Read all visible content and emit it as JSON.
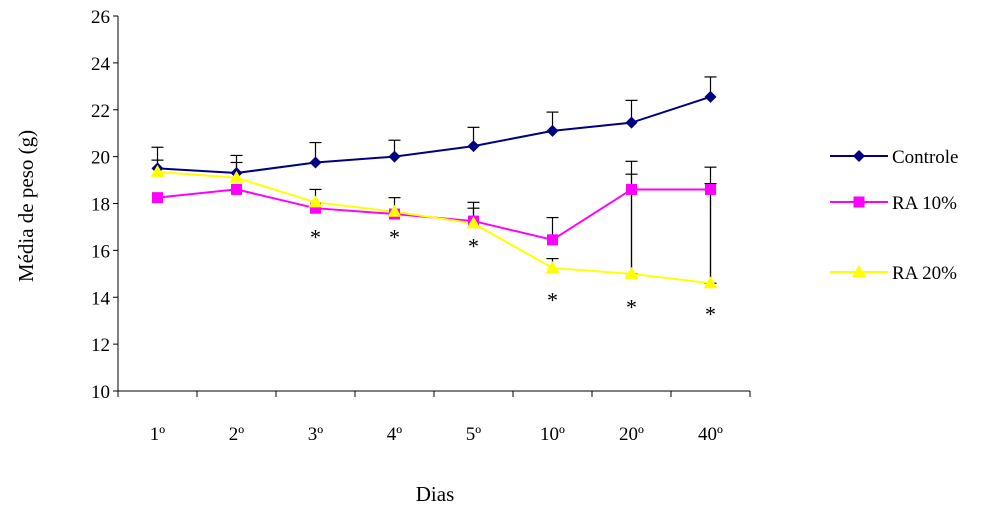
{
  "chart_data": {
    "type": "line",
    "title": "",
    "xlabel": "Dias",
    "ylabel": "Média de peso (g)",
    "categories": [
      "1º",
      "2º",
      "3º",
      "4º",
      "5º",
      "10º",
      "20º",
      "40º"
    ],
    "ylim": [
      10,
      26
    ],
    "yticks": [
      10,
      12,
      14,
      16,
      18,
      20,
      22,
      24,
      26
    ],
    "grid": false,
    "legend_position": "right",
    "series": [
      {
        "name": "Controle",
        "color": "#000080",
        "marker": "diamond",
        "values": [
          19.5,
          19.3,
          19.75,
          20.0,
          20.45,
          21.1,
          21.45,
          22.55
        ],
        "error_upper": [
          20.4,
          20.05,
          20.6,
          20.7,
          21.25,
          21.9,
          22.4,
          23.4
        ]
      },
      {
        "name": "RA 10%",
        "color": "#ff00ff",
        "marker": "square",
        "values": [
          18.25,
          18.6,
          17.8,
          17.55,
          17.25,
          16.45,
          18.6,
          18.6
        ],
        "error_upper": [
          18.25,
          18.6,
          17.8,
          17.55,
          18.05,
          17.4,
          19.8,
          19.55
        ],
        "error_lower": [
          18.25,
          18.6,
          17.8,
          17.55,
          17.25,
          16.45,
          15.0,
          14.6
        ]
      },
      {
        "name": "RA 20%",
        "color": "#ffff00",
        "marker": "triangle",
        "values": [
          19.35,
          19.1,
          18.05,
          17.65,
          17.15,
          15.25,
          15.0,
          14.6
        ],
        "error_upper": [
          19.85,
          19.75,
          18.6,
          18.25,
          17.8,
          15.65,
          19.25,
          18.85
        ]
      }
    ],
    "annotations": [
      {
        "category": "3º",
        "text": "*",
        "y": 16.6
      },
      {
        "category": "4º",
        "text": "*",
        "y": 16.6
      },
      {
        "category": "5º",
        "text": "*",
        "y": 16.2
      },
      {
        "category": "10º",
        "text": "*",
        "y": 13.9
      },
      {
        "category": "20º",
        "text": "*",
        "y": 13.6
      },
      {
        "category": "40º",
        "text": "*",
        "y": 13.3
      }
    ]
  }
}
